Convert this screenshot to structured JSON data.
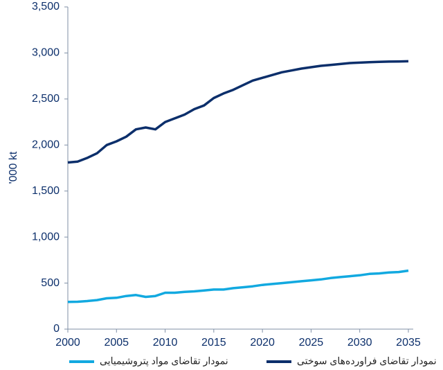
{
  "chart_data": {
    "type": "line",
    "y_label": "'000 kt",
    "x": [
      2000,
      2001,
      2002,
      2003,
      2004,
      2005,
      2006,
      2007,
      2008,
      2009,
      2010,
      2011,
      2012,
      2013,
      2014,
      2015,
      2016,
      2017,
      2018,
      2019,
      2020,
      2021,
      2022,
      2023,
      2024,
      2025,
      2026,
      2027,
      2028,
      2029,
      2030,
      2031,
      2032,
      2033,
      2034,
      2035
    ],
    "series": [
      {
        "name": "نمودار تقاضای مواد پتروشیمیایی",
        "color": "#12a9e0",
        "values": [
          295,
          297,
          305,
          315,
          335,
          340,
          360,
          370,
          350,
          360,
          395,
          395,
          405,
          410,
          420,
          430,
          430,
          445,
          455,
          465,
          480,
          490,
          500,
          510,
          520,
          530,
          540,
          555,
          565,
          575,
          585,
          600,
          605,
          615,
          620,
          635
        ]
      },
      {
        "name": "نمودار تقاضای فراورده‌های سوختی",
        "color": "#0c2f6b",
        "values": [
          1810,
          1820,
          1860,
          1910,
          2000,
          2040,
          2090,
          2170,
          2190,
          2170,
          2250,
          2290,
          2330,
          2390,
          2430,
          2510,
          2560,
          2600,
          2650,
          2700,
          2730,
          2760,
          2790,
          2810,
          2830,
          2845,
          2860,
          2870,
          2880,
          2890,
          2895,
          2900,
          2903,
          2906,
          2908,
          2910
        ]
      }
    ],
    "xlim": [
      2000,
      2035.5
    ],
    "xticks": [
      2000,
      2005,
      2010,
      2015,
      2020,
      2025,
      2030,
      2035
    ],
    "ylim": [
      0,
      3500
    ],
    "yticks": [
      0,
      500,
      {
        "value": 1000,
        "label": "1,000"
      },
      {
        "value": 1500,
        "label": "1,500"
      },
      {
        "value": 2000,
        "label": "2,000"
      },
      {
        "value": 2500,
        "label": "2,500"
      },
      {
        "value": 3000,
        "label": "3,000"
      },
      {
        "value": 3500,
        "label": "3,500"
      }
    ],
    "grid": false,
    "legend": "bottom"
  }
}
